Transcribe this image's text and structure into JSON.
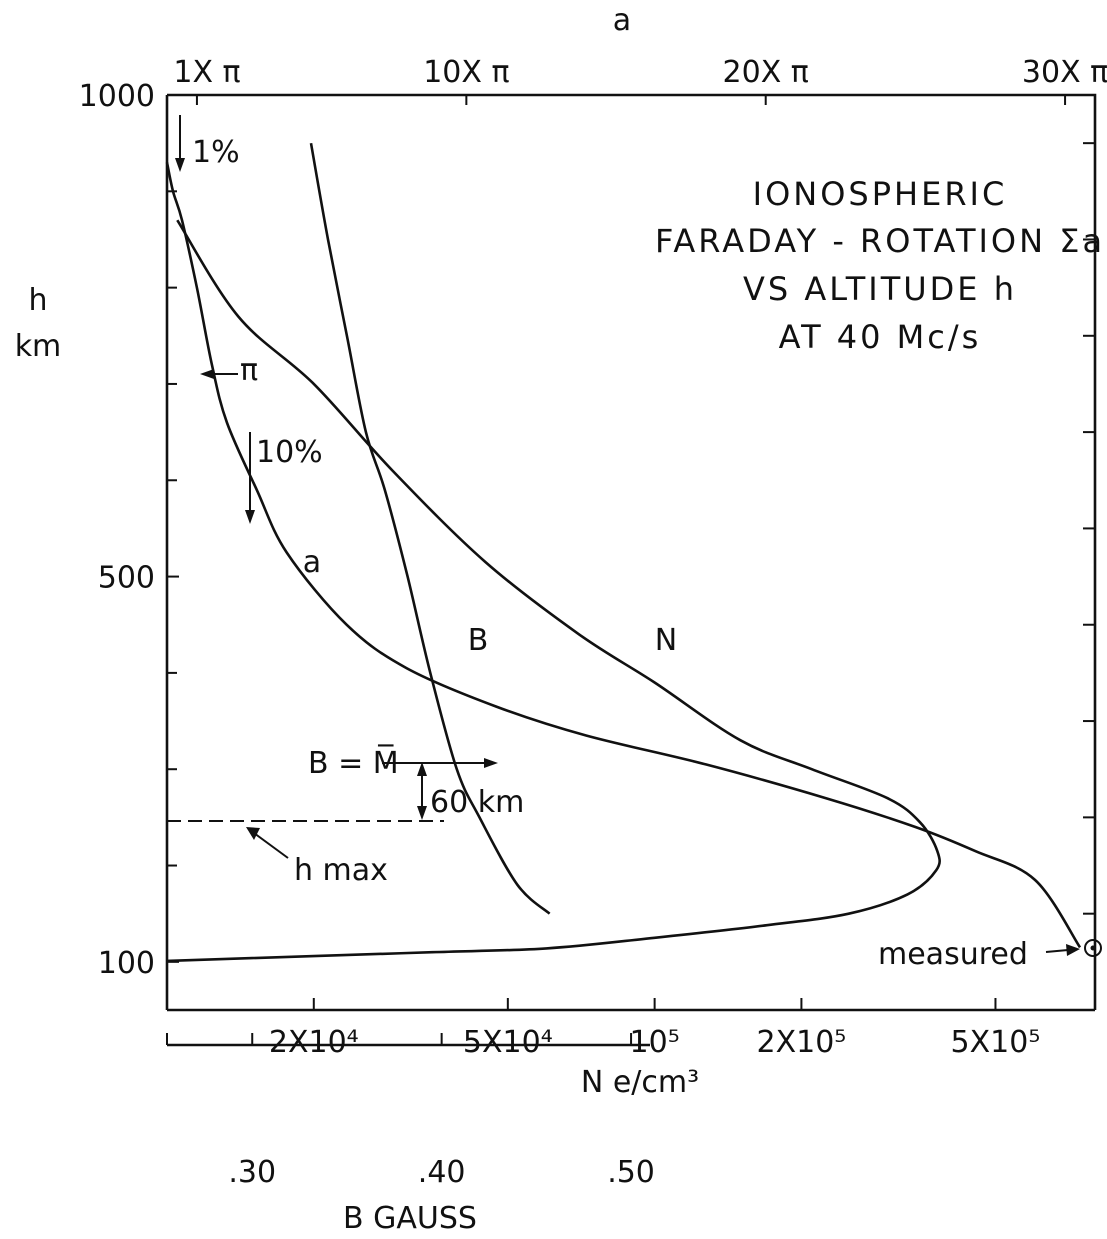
{
  "chart_data": {
    "type": "line",
    "title": [
      "IONOSPHERIC",
      "FARADAY - ROTATION Σa",
      "VS ALTITUDE h",
      "AT 40 Mc/s"
    ],
    "ylabel": [
      "h",
      "km"
    ],
    "ylim": [
      50,
      1000
    ],
    "y_tick_labels": [
      "1000",
      "500",
      "100"
    ],
    "y_tick_values": [
      1000,
      500,
      100
    ],
    "top_axis_label": "a",
    "top_tick_labels": [
      "1X π",
      "10X π",
      "20X π",
      "30X π"
    ],
    "top_tick_values": [
      1,
      10,
      20,
      30
    ],
    "top_xlim": [
      0,
      31
    ],
    "bottom_axis_label": "N e/cm³",
    "bottom_tick_labels": [
      "2X10⁴",
      "5X10⁴",
      "10⁵",
      "2X10⁵",
      "5X10⁵"
    ],
    "bottom_tick_values": [
      20000,
      50000,
      100000,
      200000,
      500000
    ],
    "bottom_xlim": [
      10000,
      800000
    ],
    "bottom_scale": "log",
    "gauss_axis_label": "B GAUSS",
    "gauss_tick_labels": [
      ".30",
      ".40",
      ".50"
    ],
    "gauss_tick_values": [
      0.3,
      0.4,
      0.5
    ],
    "gauss_xlim": [
      0.255,
      0.51
    ],
    "series": [
      {
        "name": "a",
        "axis": "top",
        "x": [
          0.0,
          0.2,
          0.5,
          1.0,
          1.5,
          2.0,
          3.0,
          4.0,
          6.0,
          8.0,
          11.0,
          14.0,
          18.0,
          22.0,
          25.0,
          27.0,
          29.0,
          30.5
        ],
        "y": [
          930,
          900,
          870,
          800,
          720,
          660,
          590,
          525,
          450,
          405,
          365,
          335,
          305,
          270,
          240,
          215,
          185,
          115
        ]
      },
      {
        "name": "N",
        "axis": "bottom",
        "x": [
          10500,
          14000,
          20000,
          29000,
          45000,
          70000,
          100000,
          150000,
          210000,
          300000,
          350000,
          380000,
          378000,
          330000,
          250000,
          170000,
          100000,
          60000,
          35000,
          20000,
          10000
        ],
        "y": [
          870,
          770,
          700,
          610,
          515,
          440,
          390,
          330,
          300,
          270,
          245,
          215,
          195,
          170,
          150,
          138,
          125,
          114,
          110,
          106,
          101
        ]
      },
      {
        "name": "B",
        "axis": "gauss",
        "x": [
          0.331,
          0.34,
          0.35,
          0.36,
          0.37,
          0.382,
          0.394,
          0.408,
          0.42,
          0.44,
          0.457
        ],
        "y": [
          950,
          850,
          750,
          650,
          590,
          500,
          400,
          300,
          250,
          180,
          150
        ]
      }
    ],
    "annotations": [
      {
        "text": "1%",
        "note": "arrow down"
      },
      {
        "text": "10%",
        "note": "arrow down"
      },
      {
        "text": "π",
        "note": "arrow left"
      },
      {
        "text": "B = M̅",
        "note": "arrow right"
      },
      {
        "text": "60 km"
      },
      {
        "text": "h max",
        "note": "dashed line"
      },
      {
        "text": "measured",
        "note": "point"
      }
    ],
    "grid": false,
    "legend": "none"
  }
}
